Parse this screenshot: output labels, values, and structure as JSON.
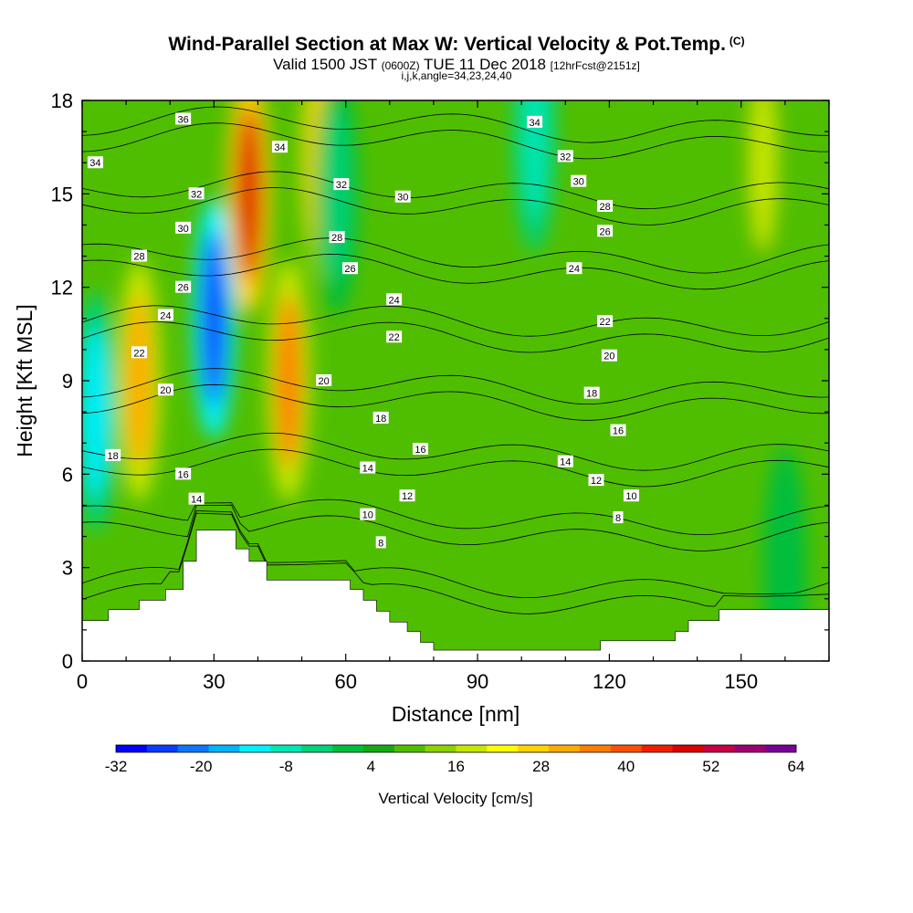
{
  "title": "Wind-Parallel Section at Max W: Vertical Velocity & Pot.Temp.",
  "copyright": "(C)",
  "subtitle_parts": [
    "Valid 1500 JST",
    "(0600Z)",
    "TUE 11 Dec 2018",
    "[12hrFcst@2151z]"
  ],
  "subtitle2": "i,j,k,angle=34,23,24,40",
  "chart_data": {
    "type": "heatmap",
    "xlabel": "Distance [nm]",
    "ylabel": "Height [Kft MSL]",
    "xlim": [
      0,
      170
    ],
    "ylim": [
      0,
      18
    ],
    "x_ticks": [
      "0",
      "30",
      "60",
      "90",
      "120",
      "150"
    ],
    "y_ticks": [
      "0",
      "3",
      "6",
      "9",
      "12",
      "15",
      "18"
    ],
    "background_level": 4,
    "colorbar": {
      "title": "Vertical Velocity [cm/s]",
      "tick_labels": [
        "-32",
        "-20",
        "-8",
        "4",
        "16",
        "28",
        "40",
        "52",
        "64"
      ],
      "colors": [
        "#0000ff",
        "#0a3cff",
        "#0a78ff",
        "#00b4ff",
        "#00f0ff",
        "#00e6b4",
        "#00d278",
        "#00be3c",
        "#14aa14",
        "#50be00",
        "#8cd200",
        "#c8e600",
        "#ffff00",
        "#ffd200",
        "#ffaa00",
        "#ff7d00",
        "#ff5000",
        "#f01e00",
        "#dc0000",
        "#c80046",
        "#a0006e",
        "#780096"
      ]
    },
    "updrafts_downdrafts": [
      {
        "x": 3,
        "y": 8,
        "w": -16
      },
      {
        "x": 13,
        "y": 9,
        "w": 24
      },
      {
        "x": 30,
        "y": 11,
        "w": -28
      },
      {
        "x": 38,
        "y": 15,
        "w": 40
      },
      {
        "x": 47,
        "y": 9,
        "w": 28
      },
      {
        "x": 54,
        "y": 16,
        "w": 20
      },
      {
        "x": 58,
        "y": 15,
        "w": -8
      },
      {
        "x": 103,
        "y": 17,
        "w": -12
      },
      {
        "x": 155,
        "y": 16,
        "w": 12
      },
      {
        "x": 160,
        "y": 3,
        "w": -4
      }
    ],
    "isentrope_levels": [
      8,
      10,
      12,
      14,
      16,
      18,
      20,
      22,
      24,
      26,
      28,
      30,
      32,
      34,
      36
    ],
    "isentrope_labels": [
      {
        "text": "36",
        "x": 23,
        "y": 17.4
      },
      {
        "text": "34",
        "x": 3,
        "y": 16.0
      },
      {
        "text": "34",
        "x": 45,
        "y": 16.5
      },
      {
        "text": "32",
        "x": 26,
        "y": 15.0
      },
      {
        "text": "32",
        "x": 59,
        "y": 15.3
      },
      {
        "text": "30",
        "x": 23,
        "y": 13.9
      },
      {
        "text": "30",
        "x": 73,
        "y": 14.9
      },
      {
        "text": "28",
        "x": 13,
        "y": 13.0
      },
      {
        "text": "28",
        "x": 58,
        "y": 13.6
      },
      {
        "text": "26",
        "x": 23,
        "y": 12.0
      },
      {
        "text": "26",
        "x": 61,
        "y": 12.6
      },
      {
        "text": "24",
        "x": 19,
        "y": 11.1
      },
      {
        "text": "24",
        "x": 71,
        "y": 11.6
      },
      {
        "text": "22",
        "x": 13,
        "y": 9.9
      },
      {
        "text": "22",
        "x": 71,
        "y": 10.4
      },
      {
        "text": "20",
        "x": 19,
        "y": 8.7
      },
      {
        "text": "20",
        "x": 55,
        "y": 9.0
      },
      {
        "text": "18",
        "x": 7,
        "y": 6.6
      },
      {
        "text": "18",
        "x": 68,
        "y": 7.8
      },
      {
        "text": "16",
        "x": 23,
        "y": 6.0
      },
      {
        "text": "16",
        "x": 77,
        "y": 6.8
      },
      {
        "text": "14",
        "x": 26,
        "y": 5.2
      },
      {
        "text": "14",
        "x": 65,
        "y": 6.2
      },
      {
        "text": "12",
        "x": 74,
        "y": 5.3
      },
      {
        "text": "10",
        "x": 65,
        "y": 4.7
      },
      {
        "text": "8",
        "x": 68,
        "y": 3.8
      },
      {
        "text": "34",
        "x": 103,
        "y": 17.3
      },
      {
        "text": "32",
        "x": 110,
        "y": 16.2
      },
      {
        "text": "30",
        "x": 113,
        "y": 15.4
      },
      {
        "text": "28",
        "x": 119,
        "y": 14.6
      },
      {
        "text": "26",
        "x": 119,
        "y": 13.8
      },
      {
        "text": "24",
        "x": 112,
        "y": 12.6
      },
      {
        "text": "22",
        "x": 119,
        "y": 10.9
      },
      {
        "text": "20",
        "x": 120,
        "y": 9.8
      },
      {
        "text": "18",
        "x": 116,
        "y": 8.6
      },
      {
        "text": "16",
        "x": 122,
        "y": 7.4
      },
      {
        "text": "14",
        "x": 110,
        "y": 6.4
      },
      {
        "text": "12",
        "x": 117,
        "y": 5.8
      },
      {
        "text": "10",
        "x": 125,
        "y": 5.3
      },
      {
        "text": "8",
        "x": 122,
        "y": 4.6
      }
    ],
    "terrain_kft": [
      [
        0,
        1.3
      ],
      [
        6,
        1.3
      ],
      [
        6,
        1.65
      ],
      [
        13,
        1.65
      ],
      [
        13,
        1.95
      ],
      [
        19,
        1.95
      ],
      [
        19,
        2.3
      ],
      [
        23,
        2.3
      ],
      [
        23,
        3.2
      ],
      [
        26,
        3.2
      ],
      [
        26,
        4.2
      ],
      [
        35,
        4.2
      ],
      [
        35,
        3.6
      ],
      [
        38,
        3.6
      ],
      [
        38,
        3.2
      ],
      [
        42,
        3.2
      ],
      [
        42,
        2.6
      ],
      [
        61,
        2.6
      ],
      [
        61,
        2.3
      ],
      [
        64,
        2.3
      ],
      [
        64,
        1.95
      ],
      [
        67,
        1.95
      ],
      [
        67,
        1.6
      ],
      [
        70,
        1.6
      ],
      [
        70,
        1.25
      ],
      [
        74,
        1.25
      ],
      [
        74,
        0.95
      ],
      [
        77,
        0.95
      ],
      [
        77,
        0.6
      ],
      [
        80,
        0.6
      ],
      [
        80,
        0.35
      ],
      [
        118,
        0.35
      ],
      [
        118,
        0.65
      ],
      [
        135,
        0.65
      ],
      [
        135,
        0.95
      ],
      [
        138,
        0.95
      ],
      [
        138,
        1.3
      ],
      [
        145,
        1.3
      ],
      [
        145,
        1.65
      ],
      [
        170,
        1.65
      ]
    ]
  }
}
